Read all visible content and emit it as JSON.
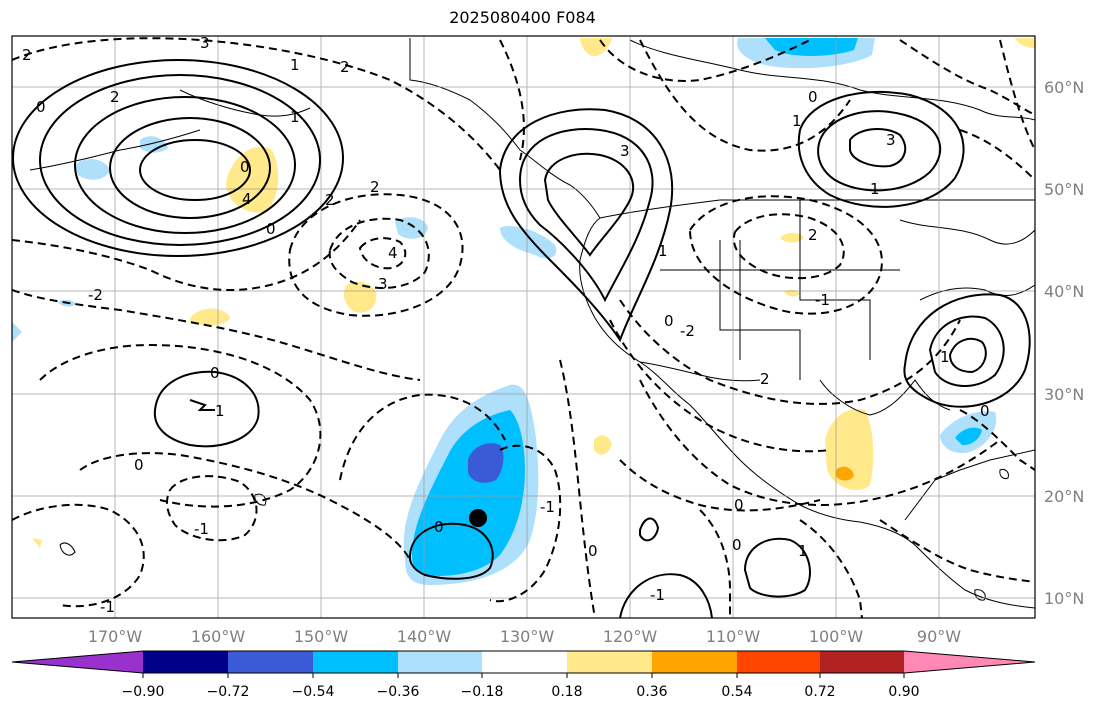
{
  "title": "2025080400 F084",
  "map": {
    "longitude_labels": [
      "170°W",
      "160°W",
      "150°W",
      "140°W",
      "130°W",
      "120°W",
      "110°W",
      "100°W",
      "90°W"
    ],
    "latitude_labels": [
      "60°N",
      "50°N",
      "40°N",
      "30°N",
      "20°N",
      "10°N"
    ],
    "contour_labels": [
      "2",
      "0",
      "2",
      "3",
      "0",
      "1",
      "2",
      "4",
      "-2",
      "0",
      "2",
      "4",
      "3",
      "0",
      "1",
      "2",
      "3",
      "0",
      "-2",
      "3",
      "2",
      "1",
      "-1",
      "0",
      "1",
      "1",
      "0",
      "0",
      "-1",
      "0",
      "-1",
      "-1",
      "0",
      "0",
      "1",
      "-1",
      "2",
      "0",
      "1",
      "1"
    ],
    "marker": "black-dot"
  },
  "colorbar": {
    "tick_labels": [
      "−0.90",
      "−0.72",
      "−0.54",
      "−0.36",
      "−0.18",
      "0.18",
      "0.36",
      "0.54",
      "0.72",
      "0.90"
    ],
    "colors": [
      "#9932cc",
      "#00008b",
      "#3b5bd6",
      "#00bfff",
      "#aee0fb",
      "#ffffff",
      "#ffe98a",
      "#ffa500",
      "#ff4500",
      "#b22222",
      "#ff88b4"
    ]
  }
}
